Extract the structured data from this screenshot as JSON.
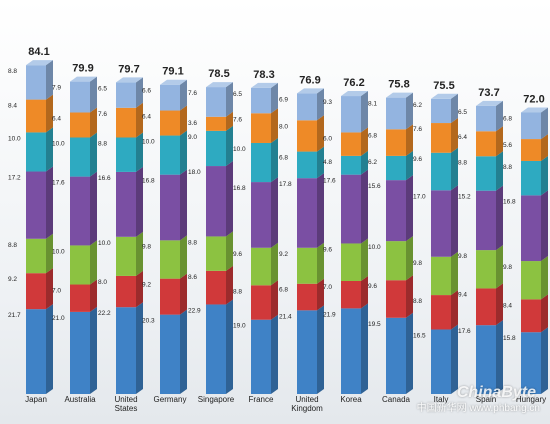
{
  "chart_data": {
    "type": "bar",
    "stacked": true,
    "categories": [
      "Japan",
      "Australia",
      "United States",
      "Germany",
      "Singapore",
      "France",
      "United Kingdom",
      "Korea",
      "Canada",
      "Italy",
      "Spain",
      "Hungary"
    ],
    "category_labels": [
      [
        "Japan"
      ],
      [
        "Australia"
      ],
      [
        "United",
        "States"
      ],
      [
        "Germany"
      ],
      [
        "Singapore"
      ],
      [
        "France"
      ],
      [
        "United",
        "Kingdom"
      ],
      [
        "Korea"
      ],
      [
        "Canada"
      ],
      [
        "Italy"
      ],
      [
        "Spain"
      ],
      [
        "Hungary"
      ]
    ],
    "totals": [
      84.1,
      79.9,
      79.7,
      79.1,
      78.5,
      78.3,
      76.9,
      76.2,
      75.8,
      75.5,
      73.7,
      72.0
    ],
    "series": [
      {
        "color": "#3f82c6",
        "values": [
          21.7,
          21.0,
          22.2,
          20.3,
          22.9,
          19.0,
          21.4,
          21.9,
          19.5,
          16.5,
          17.6,
          15.8
        ]
      },
      {
        "color": "#d0393a",
        "values": [
          9.2,
          7.0,
          8.0,
          9.2,
          8.6,
          8.8,
          6.8,
          7.0,
          9.6,
          8.8,
          9.4,
          8.4
        ]
      },
      {
        "color": "#8cc241",
        "values": [
          8.8,
          10.0,
          10.0,
          9.8,
          8.8,
          9.6,
          9.2,
          9.6,
          10.0,
          9.8,
          9.8,
          9.8
        ]
      },
      {
        "color": "#7a4fa3",
        "values": [
          17.2,
          17.6,
          16.6,
          16.8,
          18.0,
          16.8,
          17.8,
          17.6,
          15.6,
          17.0,
          15.2,
          16.8
        ]
      },
      {
        "color": "#2eaac1",
        "values": [
          10.0,
          10.0,
          8.8,
          10.0,
          9.0,
          10.0,
          6.8,
          4.8,
          6.2,
          9.6,
          8.8,
          8.8
        ]
      },
      {
        "color": "#ee8a27",
        "values": [
          8.4,
          6.4,
          7.6,
          6.4,
          3.6,
          7.6,
          8.0,
          6.0,
          6.8,
          7.6,
          6.4,
          5.6
        ]
      },
      {
        "color": "#93b4e0",
        "values": [
          8.8,
          7.9,
          6.5,
          6.6,
          7.6,
          6.5,
          6.9,
          9.3,
          8.1,
          6.2,
          6.5,
          6.8
        ]
      }
    ]
  },
  "watermark": {
    "main": "ChinaByte",
    "sub": "中国新华网 www.phbang.cn"
  }
}
